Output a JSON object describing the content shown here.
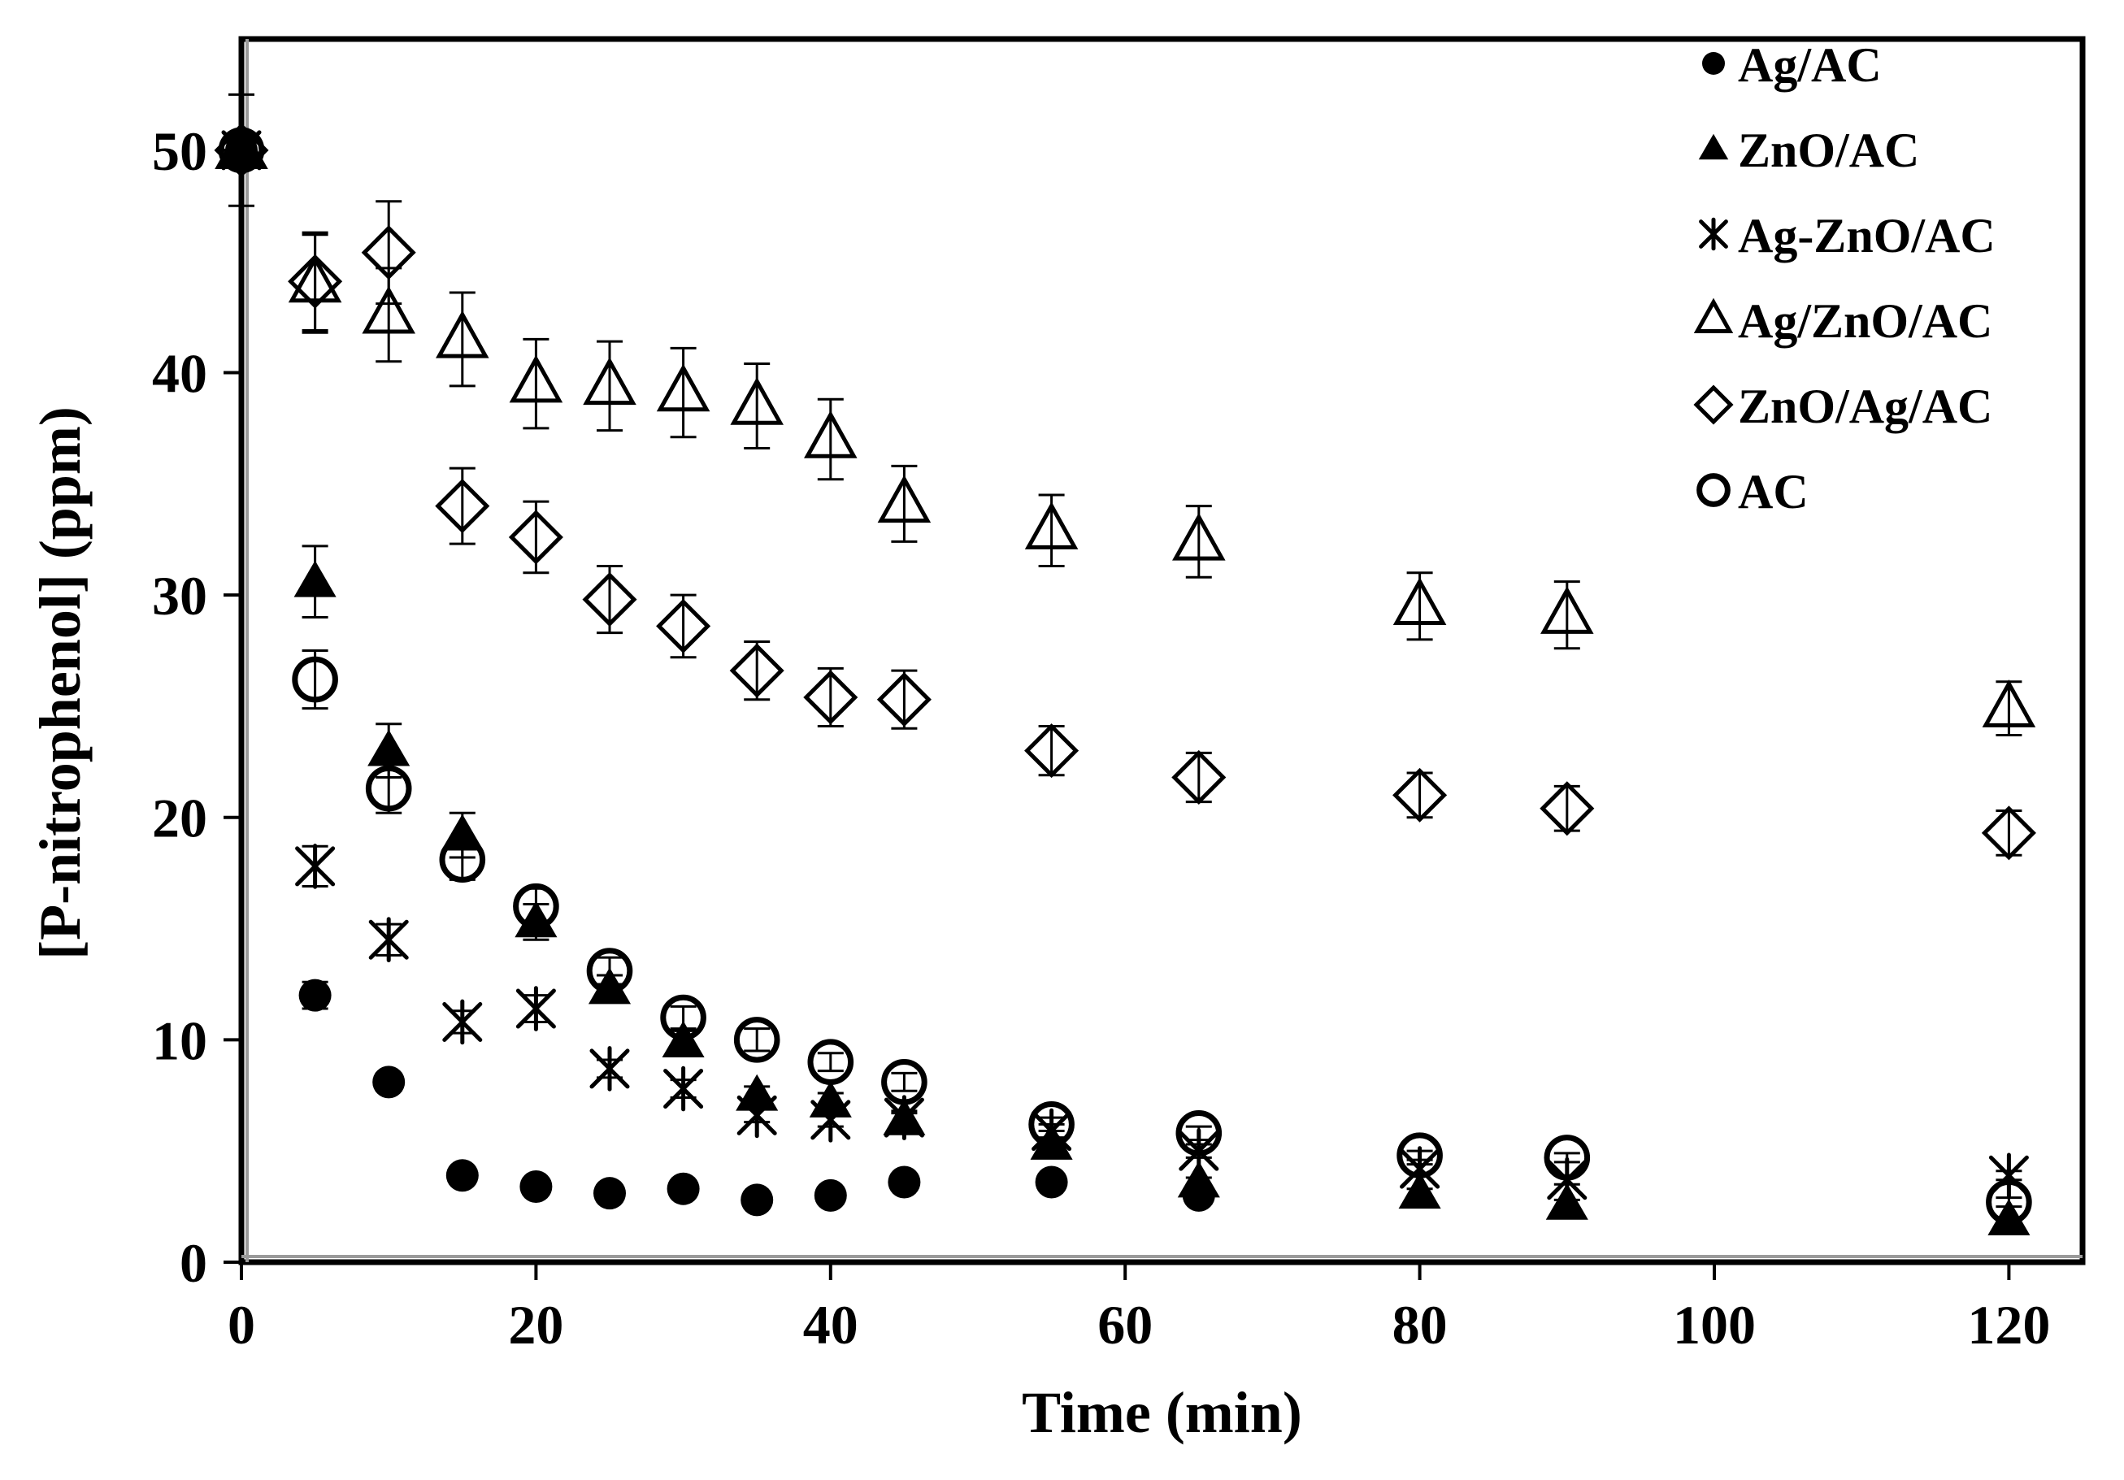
{
  "chart_data": {
    "type": "scatter",
    "title": "",
    "xlabel": "Time (min)",
    "ylabel": "[P-nitrophenol] (ppm)",
    "xlim": [
      0,
      125
    ],
    "ylim": [
      0,
      55
    ],
    "xticks": [
      0,
      20,
      40,
      60,
      80,
      100,
      120
    ],
    "yticks": [
      0,
      10,
      20,
      30,
      40,
      50
    ],
    "legend_position": "top-right",
    "series": [
      {
        "name": "Ag/AC",
        "marker": "filled-circle",
        "color": "#000000",
        "points": [
          {
            "x": 0,
            "y": 50,
            "err": 0
          },
          {
            "x": 5,
            "y": 12,
            "err": 0.6
          },
          {
            "x": 10,
            "y": 8.1,
            "err": 0.4
          },
          {
            "x": 15,
            "y": 3.9,
            "err": 0.3
          },
          {
            "x": 20,
            "y": 3.4,
            "err": 0.3
          },
          {
            "x": 25,
            "y": 3.1,
            "err": 0.3
          },
          {
            "x": 30,
            "y": 3.3,
            "err": 0.3
          },
          {
            "x": 35,
            "y": 2.8,
            "err": 0.3
          },
          {
            "x": 40,
            "y": 3.0,
            "err": 0.3
          },
          {
            "x": 45,
            "y": 3.6,
            "err": 0.3
          },
          {
            "x": 55,
            "y": 3.6,
            "err": 0.3
          },
          {
            "x": 65,
            "y": 3.0,
            "err": 0.3
          }
        ]
      },
      {
        "name": "ZnO/AC",
        "marker": "filled-triangle",
        "color": "#000000",
        "points": [
          {
            "x": 0,
            "y": 50,
            "err": 0
          },
          {
            "x": 5,
            "y": 30.6,
            "err": 1.6
          },
          {
            "x": 10,
            "y": 23.0,
            "err": 1.2
          },
          {
            "x": 15,
            "y": 19.2,
            "err": 1.0
          },
          {
            "x": 20,
            "y": 15.3,
            "err": 0.8
          },
          {
            "x": 25,
            "y": 12.3,
            "err": 0.6
          },
          {
            "x": 30,
            "y": 9.9,
            "err": 0.5
          },
          {
            "x": 35,
            "y": 7.5,
            "err": 0.4
          },
          {
            "x": 40,
            "y": 7.2,
            "err": 0.4
          },
          {
            "x": 45,
            "y": 6.4,
            "err": 0.3
          },
          {
            "x": 55,
            "y": 5.3,
            "err": 0.3
          },
          {
            "x": 65,
            "y": 3.6,
            "err": 0.2
          },
          {
            "x": 80,
            "y": 3.1,
            "err": 0.2
          },
          {
            "x": 90,
            "y": 2.6,
            "err": 0.2
          },
          {
            "x": 120,
            "y": 1.9,
            "err": 0.1
          }
        ]
      },
      {
        "name": "Ag-ZnO/AC",
        "marker": "asterisk",
        "color": "#000000",
        "points": [
          {
            "x": 0,
            "y": 50,
            "err": 0
          },
          {
            "x": 5,
            "y": 17.8,
            "err": 0.9
          },
          {
            "x": 10,
            "y": 14.5,
            "err": 0.7
          },
          {
            "x": 15,
            "y": 10.8,
            "err": 0.5
          },
          {
            "x": 20,
            "y": 11.4,
            "err": 0.6
          },
          {
            "x": 25,
            "y": 8.7,
            "err": 0.4
          },
          {
            "x": 30,
            "y": 7.8,
            "err": 0.4
          },
          {
            "x": 35,
            "y": 6.6,
            "err": 0.3
          },
          {
            "x": 40,
            "y": 6.4,
            "err": 0.3
          },
          {
            "x": 45,
            "y": 6.5,
            "err": 0.3
          },
          {
            "x": 55,
            "y": 5.9,
            "err": 0.3
          },
          {
            "x": 65,
            "y": 5.0,
            "err": 0.3
          },
          {
            "x": 80,
            "y": 4.2,
            "err": 0.2
          },
          {
            "x": 90,
            "y": 3.7,
            "err": 0.2
          },
          {
            "x": 120,
            "y": 3.9,
            "err": 0.2
          }
        ]
      },
      {
        "name": "Ag/ZnO/AC",
        "marker": "open-triangle",
        "color": "#000000",
        "points": [
          {
            "x": 0,
            "y": 50,
            "err": 2.5
          },
          {
            "x": 5,
            "y": 44.0,
            "err": 2.2
          },
          {
            "x": 10,
            "y": 42.6,
            "err": 2.1
          },
          {
            "x": 15,
            "y": 41.5,
            "err": 2.1
          },
          {
            "x": 20,
            "y": 39.5,
            "err": 2.0
          },
          {
            "x": 25,
            "y": 39.4,
            "err": 2.0
          },
          {
            "x": 30,
            "y": 39.1,
            "err": 2.0
          },
          {
            "x": 35,
            "y": 38.5,
            "err": 1.9
          },
          {
            "x": 40,
            "y": 37.0,
            "err": 1.8
          },
          {
            "x": 45,
            "y": 34.1,
            "err": 1.7
          },
          {
            "x": 55,
            "y": 32.9,
            "err": 1.6
          },
          {
            "x": 65,
            "y": 32.4,
            "err": 1.6
          },
          {
            "x": 80,
            "y": 29.5,
            "err": 1.5
          },
          {
            "x": 90,
            "y": 29.1,
            "err": 1.5
          },
          {
            "x": 120,
            "y": 24.9,
            "err": 1.2
          }
        ]
      },
      {
        "name": "ZnO/Ag/AC",
        "marker": "open-diamond",
        "color": "#000000",
        "points": [
          {
            "x": 0,
            "y": 50,
            "err": 0
          },
          {
            "x": 5,
            "y": 44.1,
            "err": 2.2
          },
          {
            "x": 10,
            "y": 45.4,
            "err": 2.3
          },
          {
            "x": 15,
            "y": 34.0,
            "err": 1.7
          },
          {
            "x": 20,
            "y": 32.6,
            "err": 1.6
          },
          {
            "x": 25,
            "y": 29.8,
            "err": 1.5
          },
          {
            "x": 30,
            "y": 28.6,
            "err": 1.4
          },
          {
            "x": 35,
            "y": 26.6,
            "err": 1.3
          },
          {
            "x": 40,
            "y": 25.4,
            "err": 1.3
          },
          {
            "x": 45,
            "y": 25.3,
            "err": 1.3
          },
          {
            "x": 55,
            "y": 23.0,
            "err": 1.1
          },
          {
            "x": 65,
            "y": 21.8,
            "err": 1.1
          },
          {
            "x": 80,
            "y": 21.0,
            "err": 1.0
          },
          {
            "x": 90,
            "y": 20.4,
            "err": 1.0
          },
          {
            "x": 120,
            "y": 19.3,
            "err": 1.0
          }
        ]
      },
      {
        "name": "AC",
        "marker": "open-circle",
        "color": "#000000",
        "points": [
          {
            "x": 0,
            "y": 50,
            "err": 0
          },
          {
            "x": 5,
            "y": 26.2,
            "err": 1.3
          },
          {
            "x": 10,
            "y": 21.3,
            "err": 1.1
          },
          {
            "x": 15,
            "y": 18.1,
            "err": 0.9
          },
          {
            "x": 20,
            "y": 16.0,
            "err": 0.8
          },
          {
            "x": 25,
            "y": 13.1,
            "err": 0.6
          },
          {
            "x": 30,
            "y": 11.0,
            "err": 0.5
          },
          {
            "x": 35,
            "y": 10.0,
            "err": 0.5
          },
          {
            "x": 40,
            "y": 9.0,
            "err": 0.4
          },
          {
            "x": 45,
            "y": 8.1,
            "err": 0.4
          },
          {
            "x": 55,
            "y": 6.2,
            "err": 0.3
          },
          {
            "x": 65,
            "y": 5.8,
            "err": 0.3
          },
          {
            "x": 80,
            "y": 4.8,
            "err": 0.2
          },
          {
            "x": 90,
            "y": 4.7,
            "err": 0.2
          },
          {
            "x": 120,
            "y": 2.7,
            "err": 0.2
          }
        ]
      }
    ]
  }
}
